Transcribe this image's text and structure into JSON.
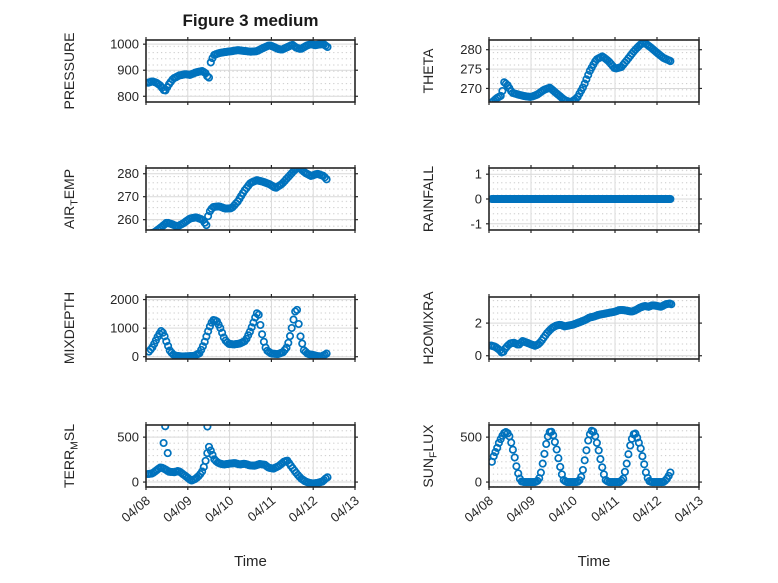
{
  "figure": {
    "title": "Figure 3 medium",
    "xlabel": "Time",
    "background": "#ffffff",
    "axis_color": "#262626",
    "grid_color": "#d9d9d9",
    "minor_grid_color": "#c6c6c6",
    "marker_color": "#0072BD",
    "x_ticklabels": [
      "04/08",
      "04/09",
      "04/10",
      "04/11",
      "04/12",
      "04/13"
    ],
    "x_range_days": [
      0,
      5
    ]
  },
  "chart_data": [
    {
      "type": "scatter",
      "id": "pressure",
      "ylabel_pre": "PRESSURE",
      "ylabel_sub": "",
      "ylabel_post": "",
      "ytick_values": [
        800,
        900,
        1000
      ],
      "ytick_labels": [
        "800",
        "900",
        "1000"
      ],
      "ylim": [
        778,
        1016
      ],
      "xlim_days": [
        0,
        5
      ],
      "samples_per_day": 24,
      "keypoints": [
        [
          0.05,
          852
        ],
        [
          0.15,
          857
        ],
        [
          0.25,
          852
        ],
        [
          0.35,
          840
        ],
        [
          0.45,
          818
        ],
        [
          0.55,
          846
        ],
        [
          0.65,
          868
        ],
        [
          0.8,
          880
        ],
        [
          0.95,
          885
        ],
        [
          1.05,
          882
        ],
        [
          1.2,
          892
        ],
        [
          1.35,
          897
        ],
        [
          1.45,
          885
        ],
        [
          1.5,
          860
        ],
        [
          1.55,
          930
        ],
        [
          1.62,
          958
        ],
        [
          1.75,
          966
        ],
        [
          1.9,
          970
        ],
        [
          2.05,
          973
        ],
        [
          2.2,
          977
        ],
        [
          2.35,
          974
        ],
        [
          2.5,
          971
        ],
        [
          2.65,
          973
        ],
        [
          2.8,
          985
        ],
        [
          2.95,
          996
        ],
        [
          3.05,
          990
        ],
        [
          3.15,
          982
        ],
        [
          3.25,
          979
        ],
        [
          3.4,
          990
        ],
        [
          3.5,
          998
        ],
        [
          3.6,
          986
        ],
        [
          3.7,
          981
        ],
        [
          3.85,
          995
        ],
        [
          3.95,
          1000
        ],
        [
          4.05,
          996
        ],
        [
          4.15,
          999
        ],
        [
          4.25,
          1000
        ],
        [
          4.35,
          988
        ]
      ],
      "outliers": []
    },
    {
      "type": "scatter",
      "id": "theta",
      "ylabel_pre": "THETA",
      "ylabel_sub": "",
      "ylabel_post": "",
      "ytick_values": [
        270,
        275,
        280
      ],
      "ytick_labels": [
        "270",
        "275",
        "280"
      ],
      "ylim": [
        266.5,
        282.5
      ],
      "xlim_days": [
        0,
        5
      ],
      "samples_per_day": 24,
      "keypoints": [
        [
          0.07,
          266.4
        ],
        [
          0.2,
          267.6
        ],
        [
          0.3,
          268.2
        ],
        [
          0.36,
          271.6
        ],
        [
          0.44,
          270.9
        ],
        [
          0.55,
          268.9
        ],
        [
          0.7,
          268.4
        ],
        [
          0.85,
          268.0
        ],
        [
          1.0,
          267.8
        ],
        [
          1.15,
          268.4
        ],
        [
          1.3,
          269.6
        ],
        [
          1.45,
          270.2
        ],
        [
          1.6,
          268.8
        ],
        [
          1.8,
          267.0
        ],
        [
          1.95,
          266.4
        ],
        [
          2.1,
          267.6
        ],
        [
          2.25,
          270.5
        ],
        [
          2.4,
          274.5
        ],
        [
          2.55,
          277.4
        ],
        [
          2.7,
          278.3
        ],
        [
          2.85,
          277.0
        ],
        [
          3.0,
          275.1
        ],
        [
          3.15,
          275.5
        ],
        [
          3.3,
          277.5
        ],
        [
          3.45,
          279.6
        ],
        [
          3.6,
          281.3
        ],
        [
          3.7,
          281.8
        ],
        [
          3.85,
          280.6
        ],
        [
          4.0,
          279.2
        ],
        [
          4.15,
          277.9
        ],
        [
          4.35,
          276.9
        ]
      ],
      "outliers": []
    },
    {
      "type": "scatter",
      "id": "air_temp",
      "ylabel_pre": "AIR",
      "ylabel_sub": "T",
      "ylabel_post": "EMP",
      "ytick_values": [
        260,
        270,
        280
      ],
      "ytick_labels": [
        "260",
        "270",
        "280"
      ],
      "ylim": [
        255.5,
        282.5
      ],
      "xlim_days": [
        0,
        5
      ],
      "samples_per_day": 24,
      "keypoints": [
        [
          0.07,
          253.8
        ],
        [
          0.2,
          254.5
        ],
        [
          0.35,
          256.5
        ],
        [
          0.5,
          258.8
        ],
        [
          0.62,
          258.0
        ],
        [
          0.75,
          257.0
        ],
        [
          0.9,
          258.5
        ],
        [
          1.05,
          260.5
        ],
        [
          1.2,
          261.0
        ],
        [
          1.35,
          260.0
        ],
        [
          1.45,
          257.5
        ],
        [
          1.5,
          263.0
        ],
        [
          1.6,
          265.5
        ],
        [
          1.75,
          265.8
        ],
        [
          1.9,
          264.8
        ],
        [
          2.05,
          265.0
        ],
        [
          2.2,
          268.0
        ],
        [
          2.35,
          272.5
        ],
        [
          2.5,
          276.0
        ],
        [
          2.65,
          277.2
        ],
        [
          2.8,
          276.5
        ],
        [
          2.95,
          275.5
        ],
        [
          3.1,
          273.8
        ],
        [
          3.25,
          275.5
        ],
        [
          3.4,
          278.5
        ],
        [
          3.55,
          281.5
        ],
        [
          3.65,
          283.0
        ],
        [
          3.8,
          280.5
        ],
        [
          3.95,
          279.0
        ],
        [
          4.1,
          280.0
        ],
        [
          4.25,
          279.0
        ],
        [
          4.35,
          277.0
        ]
      ],
      "outliers": []
    },
    {
      "type": "scatter",
      "id": "rainfall",
      "ylabel_pre": "RAINFALL",
      "ylabel_sub": "",
      "ylabel_post": "",
      "ytick_values": [
        -1,
        0,
        1
      ],
      "ytick_labels": [
        "-1",
        "0",
        "1"
      ],
      "ylim": [
        -1.25,
        1.25
      ],
      "xlim_days": [
        0,
        5
      ],
      "samples_per_day": 48,
      "keypoints": [
        [
          0.07,
          0
        ],
        [
          4.33,
          0
        ]
      ],
      "outliers": []
    },
    {
      "type": "scatter",
      "id": "mixdepth",
      "ylabel_pre": "MIXDEPTH",
      "ylabel_sub": "",
      "ylabel_post": "",
      "ytick_values": [
        0,
        1000,
        2000
      ],
      "ytick_labels": [
        "0",
        "1000",
        "2000"
      ],
      "ylim": [
        -80,
        2090
      ],
      "xlim_days": [
        0,
        5
      ],
      "samples_per_day": 24,
      "keypoints": [
        [
          0.07,
          180
        ],
        [
          0.15,
          320
        ],
        [
          0.22,
          520
        ],
        [
          0.3,
          760
        ],
        [
          0.36,
          900
        ],
        [
          0.42,
          820
        ],
        [
          0.5,
          480
        ],
        [
          0.58,
          180
        ],
        [
          0.68,
          40
        ],
        [
          0.85,
          10
        ],
        [
          1.0,
          15
        ],
        [
          1.15,
          30
        ],
        [
          1.28,
          120
        ],
        [
          1.38,
          420
        ],
        [
          1.47,
          820
        ],
        [
          1.55,
          1150
        ],
        [
          1.62,
          1300
        ],
        [
          1.7,
          1230
        ],
        [
          1.78,
          1000
        ],
        [
          1.88,
          600
        ],
        [
          1.98,
          450
        ],
        [
          2.1,
          430
        ],
        [
          2.25,
          460
        ],
        [
          2.38,
          560
        ],
        [
          2.48,
          850
        ],
        [
          2.56,
          1150
        ],
        [
          2.63,
          1450
        ],
        [
          2.68,
          1600
        ],
        [
          2.74,
          1080
        ],
        [
          2.8,
          620
        ],
        [
          2.88,
          230
        ],
        [
          3.0,
          110
        ],
        [
          3.15,
          90
        ],
        [
          3.28,
          160
        ],
        [
          3.38,
          350
        ],
        [
          3.45,
          750
        ],
        [
          3.5,
          1100
        ],
        [
          3.55,
          1450
        ],
        [
          3.6,
          1780
        ],
        [
          3.65,
          1180
        ],
        [
          3.7,
          660
        ],
        [
          3.78,
          220
        ],
        [
          3.88,
          90
        ],
        [
          4.0,
          60
        ],
        [
          4.1,
          20
        ],
        [
          4.2,
          10
        ],
        [
          4.28,
          70
        ],
        [
          4.35,
          140
        ]
      ],
      "outliers": []
    },
    {
      "type": "scatter",
      "id": "h2omixra",
      "ylabel_pre": "H2OMIXRA",
      "ylabel_sub": "",
      "ylabel_post": "",
      "ytick_values": [
        0,
        2
      ],
      "ytick_labels": [
        "0",
        "2"
      ],
      "ylim": [
        -0.2,
        3.6
      ],
      "xlim_days": [
        0,
        5
      ],
      "samples_per_day": 24,
      "keypoints": [
        [
          0.05,
          0.62
        ],
        [
          0.15,
          0.55
        ],
        [
          0.25,
          0.35
        ],
        [
          0.32,
          0.15
        ],
        [
          0.4,
          0.5
        ],
        [
          0.5,
          0.75
        ],
        [
          0.6,
          0.8
        ],
        [
          0.7,
          0.65
        ],
        [
          0.8,
          0.9
        ],
        [
          0.95,
          0.75
        ],
        [
          1.1,
          0.6
        ],
        [
          1.2,
          0.75
        ],
        [
          1.3,
          1.1
        ],
        [
          1.4,
          1.45
        ],
        [
          1.5,
          1.7
        ],
        [
          1.6,
          1.85
        ],
        [
          1.7,
          1.9
        ],
        [
          1.8,
          1.8
        ],
        [
          1.9,
          1.85
        ],
        [
          2.0,
          1.9
        ],
        [
          2.1,
          2.0
        ],
        [
          2.2,
          2.1
        ],
        [
          2.3,
          2.2
        ],
        [
          2.4,
          2.35
        ],
        [
          2.5,
          2.4
        ],
        [
          2.6,
          2.5
        ],
        [
          2.7,
          2.55
        ],
        [
          2.8,
          2.6
        ],
        [
          2.9,
          2.65
        ],
        [
          3.0,
          2.7
        ],
        [
          3.1,
          2.8
        ],
        [
          3.2,
          2.8
        ],
        [
          3.3,
          2.75
        ],
        [
          3.4,
          2.7
        ],
        [
          3.5,
          2.8
        ],
        [
          3.6,
          2.95
        ],
        [
          3.7,
          3.05
        ],
        [
          3.8,
          3.0
        ],
        [
          3.9,
          3.1
        ],
        [
          4.0,
          3.05
        ],
        [
          4.1,
          3.0
        ],
        [
          4.2,
          3.15
        ],
        [
          4.3,
          3.2
        ],
        [
          4.35,
          3.15
        ]
      ],
      "outliers": []
    },
    {
      "type": "scatter",
      "id": "terr_msl",
      "ylabel_pre": "TERR",
      "ylabel_sub": "M",
      "ylabel_post": "SL",
      "ytick_values": [
        0,
        500
      ],
      "ytick_labels": [
        "0",
        "500"
      ],
      "ylim": [
        -55,
        635
      ],
      "xlim_days": [
        0,
        5
      ],
      "samples_per_day": 24,
      "keypoints": [
        [
          0.05,
          90
        ],
        [
          0.15,
          95
        ],
        [
          0.25,
          130
        ],
        [
          0.35,
          165
        ],
        [
          0.45,
          145
        ],
        [
          0.55,
          115
        ],
        [
          0.68,
          110
        ],
        [
          0.78,
          125
        ],
        [
          0.88,
          90
        ],
        [
          0.98,
          55
        ],
        [
          1.08,
          15
        ],
        [
          1.18,
          35
        ],
        [
          1.28,
          75
        ],
        [
          1.36,
          130
        ],
        [
          1.44,
          260
        ],
        [
          1.5,
          400
        ],
        [
          1.56,
          340
        ],
        [
          1.64,
          245
        ],
        [
          1.74,
          210
        ],
        [
          1.86,
          195
        ],
        [
          2.0,
          205
        ],
        [
          2.12,
          212
        ],
        [
          2.24,
          195
        ],
        [
          2.36,
          205
        ],
        [
          2.48,
          185
        ],
        [
          2.6,
          182
        ],
        [
          2.72,
          200
        ],
        [
          2.84,
          193
        ],
        [
          2.94,
          158
        ],
        [
          3.05,
          150
        ],
        [
          3.18,
          180
        ],
        [
          3.3,
          225
        ],
        [
          3.38,
          240
        ],
        [
          3.5,
          160
        ],
        [
          3.62,
          85
        ],
        [
          3.72,
          35
        ],
        [
          3.82,
          5
        ],
        [
          3.92,
          -12
        ],
        [
          4.02,
          -15
        ],
        [
          4.12,
          -8
        ],
        [
          4.22,
          5
        ],
        [
          4.3,
          40
        ],
        [
          4.35,
          55
        ]
      ],
      "outliers": [
        [
          0.42,
          435
        ],
        [
          0.46,
          622
        ],
        [
          0.52,
          322
        ],
        [
          1.47,
          618
        ]
      ]
    },
    {
      "type": "scatter",
      "id": "sun_flux",
      "ylabel_pre": "SUN",
      "ylabel_sub": "F",
      "ylabel_post": "LUX",
      "ytick_values": [
        0,
        500
      ],
      "ytick_labels": [
        "0",
        "500"
      ],
      "ylim": [
        -55,
        635
      ],
      "xlim_days": [
        0,
        5
      ],
      "samples_per_day": 24,
      "keypoints": [
        [
          0.07,
          225
        ],
        [
          0.12,
          300
        ],
        [
          0.18,
          360
        ],
        [
          0.24,
          440
        ],
        [
          0.3,
          500
        ],
        [
          0.36,
          545
        ],
        [
          0.42,
          560
        ],
        [
          0.48,
          520
        ],
        [
          0.54,
          420
        ],
        [
          0.6,
          300
        ],
        [
          0.66,
          160
        ],
        [
          0.72,
          50
        ],
        [
          0.78,
          5
        ],
        [
          0.85,
          0
        ],
        [
          1.1,
          0
        ],
        [
          1.18,
          20
        ],
        [
          1.24,
          110
        ],
        [
          1.3,
          260
        ],
        [
          1.36,
          420
        ],
        [
          1.42,
          540
        ],
        [
          1.47,
          575
        ],
        [
          1.53,
          520
        ],
        [
          1.6,
          390
        ],
        [
          1.66,
          250
        ],
        [
          1.72,
          110
        ],
        [
          1.78,
          20
        ],
        [
          1.85,
          0
        ],
        [
          2.1,
          0
        ],
        [
          2.18,
          30
        ],
        [
          2.24,
          140
        ],
        [
          2.3,
          300
        ],
        [
          2.36,
          460
        ],
        [
          2.42,
          560
        ],
        [
          2.47,
          580
        ],
        [
          2.53,
          510
        ],
        [
          2.6,
          380
        ],
        [
          2.66,
          240
        ],
        [
          2.72,
          110
        ],
        [
          2.78,
          20
        ],
        [
          2.85,
          0
        ],
        [
          3.12,
          0
        ],
        [
          3.2,
          40
        ],
        [
          3.26,
          160
        ],
        [
          3.32,
          310
        ],
        [
          3.38,
          450
        ],
        [
          3.44,
          530
        ],
        [
          3.49,
          540
        ],
        [
          3.55,
          470
        ],
        [
          3.62,
          360
        ],
        [
          3.68,
          230
        ],
        [
          3.74,
          100
        ],
        [
          3.8,
          15
        ],
        [
          3.87,
          0
        ],
        [
          4.15,
          0
        ],
        [
          4.22,
          25
        ],
        [
          4.28,
          70
        ],
        [
          4.33,
          115
        ]
      ],
      "outliers": []
    }
  ]
}
